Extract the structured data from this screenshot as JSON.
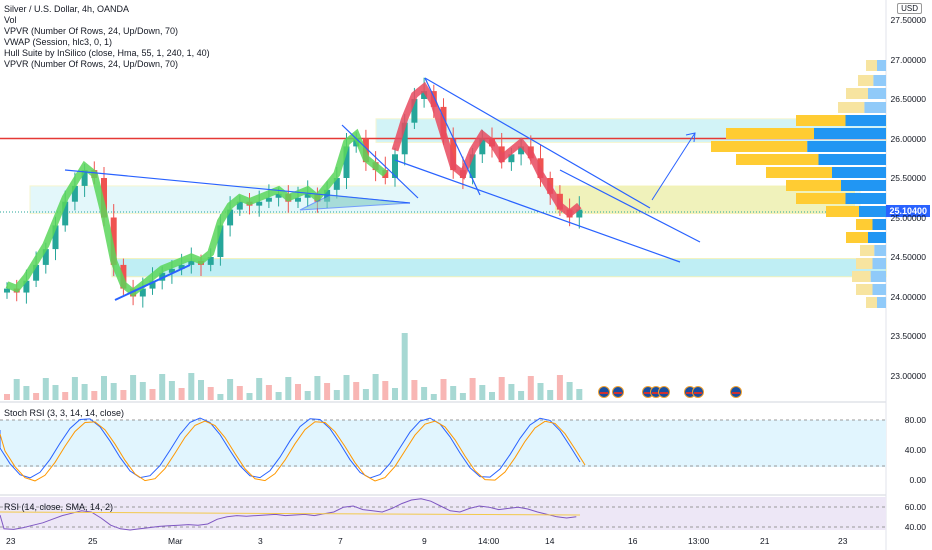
{
  "legend": {
    "symbol": "Silver / U.S. Dollar, 4h, OANDA",
    "lines": [
      "Vol",
      "VPVR (Number Of Rows, 24, Up/Down, 70)",
      "VWAP (Session, hlc3, 0, 1)",
      "Hull Suite by InSilico (close, Hma, 55, 1, 240, 1, 40)",
      "VPVR (Number Of Rows, 24, Up/Down, 70)"
    ]
  },
  "stoch_label": "Stoch RSI (3, 3, 14, 14, close)",
  "rsi_label": "RSI (14, close, SMA, 14, 2)",
  "currency": "USD",
  "last_price": "25.10400",
  "price_ticks": [
    "27.50000",
    "27.00000",
    "26.50000",
    "26.00000",
    "25.50000",
    "25.00000",
    "24.50000",
    "24.00000",
    "23.50000",
    "23.00000"
  ],
  "stoch_ticks": [
    "80.00",
    "40.00",
    "0.00"
  ],
  "rsi_ticks": [
    "60.00",
    "40.00"
  ],
  "time_ticks": [
    "23",
    "25",
    "Mar",
    "3",
    "7",
    "9",
    "14:00",
    "14",
    "16",
    "13:00",
    "21",
    "23"
  ],
  "colors": {
    "up": "#26a69a",
    "down": "#ef5350",
    "hull_up": "#5bd65b",
    "hull_down": "#e84a5f",
    "support": "#00bcd4",
    "resistance": "#e53935",
    "trend": "#2962ff"
  },
  "chart_data": {
    "type": "candlestick",
    "title": "Silver / U.S. Dollar, 4h, OANDA",
    "ylim": [
      23.0,
      27.5
    ],
    "resistance_level": 26.0,
    "zones": [
      [
        25.05,
        25.4
      ],
      [
        24.25,
        24.48
      ],
      [
        25.95,
        26.25
      ]
    ],
    "close_series": [
      24.1,
      24.05,
      24.2,
      24.4,
      24.6,
      24.9,
      25.2,
      25.4,
      25.6,
      25.5,
      25.0,
      24.4,
      24.1,
      24.0,
      24.1,
      24.2,
      24.3,
      24.35,
      24.4,
      24.45,
      24.4,
      24.5,
      24.9,
      25.1,
      25.2,
      25.15,
      25.2,
      25.25,
      25.3,
      25.2,
      25.25,
      25.3,
      25.2,
      25.35,
      25.5,
      25.9,
      26.0,
      25.7,
      25.6,
      25.5,
      25.8,
      26.2,
      26.5,
      26.6,
      26.4,
      26.0,
      25.6,
      25.5,
      25.8,
      26.0,
      25.9,
      25.7,
      25.8,
      25.9,
      25.75,
      25.5,
      25.3,
      25.1,
      25.0,
      25.1
    ]
  }
}
